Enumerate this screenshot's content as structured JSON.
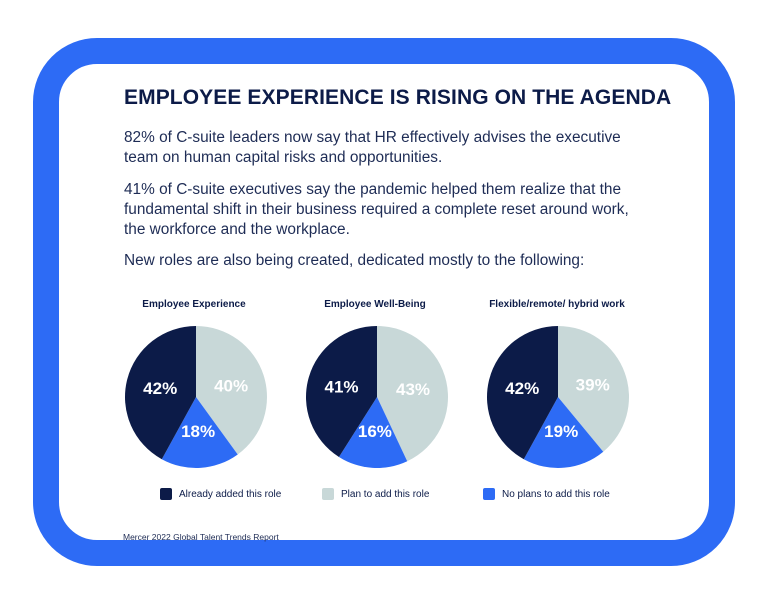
{
  "header": {
    "title": "EMPLOYEE EXPERIENCE IS RISING ON THE AGENDA"
  },
  "body": {
    "paragraphs": [
      "82% of C-suite leaders now say that HR effectively advises the executive team on human capital risks and opportunities.",
      "41% of C-suite executives say the pandemic helped them realize that the fundamental shift in their business required a complete reset around work, the workforce and the workplace.",
      "New roles are also being created, dedicated mostly to the following:"
    ]
  },
  "colors": {
    "frame": "#2d6bf5",
    "already": "#0c1b48",
    "plan": "#c8d8d8",
    "noplans": "#2d6bf5"
  },
  "chart_data": {
    "type": "pie",
    "legend": "bottom",
    "legend_entries": [
      "Already added this role",
      "Plan to add this role",
      "No plans to add this role"
    ],
    "pies": [
      {
        "title": "Employee Experience",
        "values": [
          42,
          40,
          18
        ],
        "labels": [
          "42%",
          "40%",
          "18%"
        ]
      },
      {
        "title": "Employee Well-Being",
        "values": [
          41,
          43,
          16
        ],
        "labels": [
          "41%",
          "43%",
          "16%"
        ]
      },
      {
        "title": "Flexible/remote/ hybrid work",
        "values": [
          42,
          39,
          19
        ],
        "labels": [
          "42%",
          "39%",
          "19%"
        ]
      }
    ]
  },
  "footer": {
    "source": "Mercer 2022 Global Talent Trends Report"
  }
}
